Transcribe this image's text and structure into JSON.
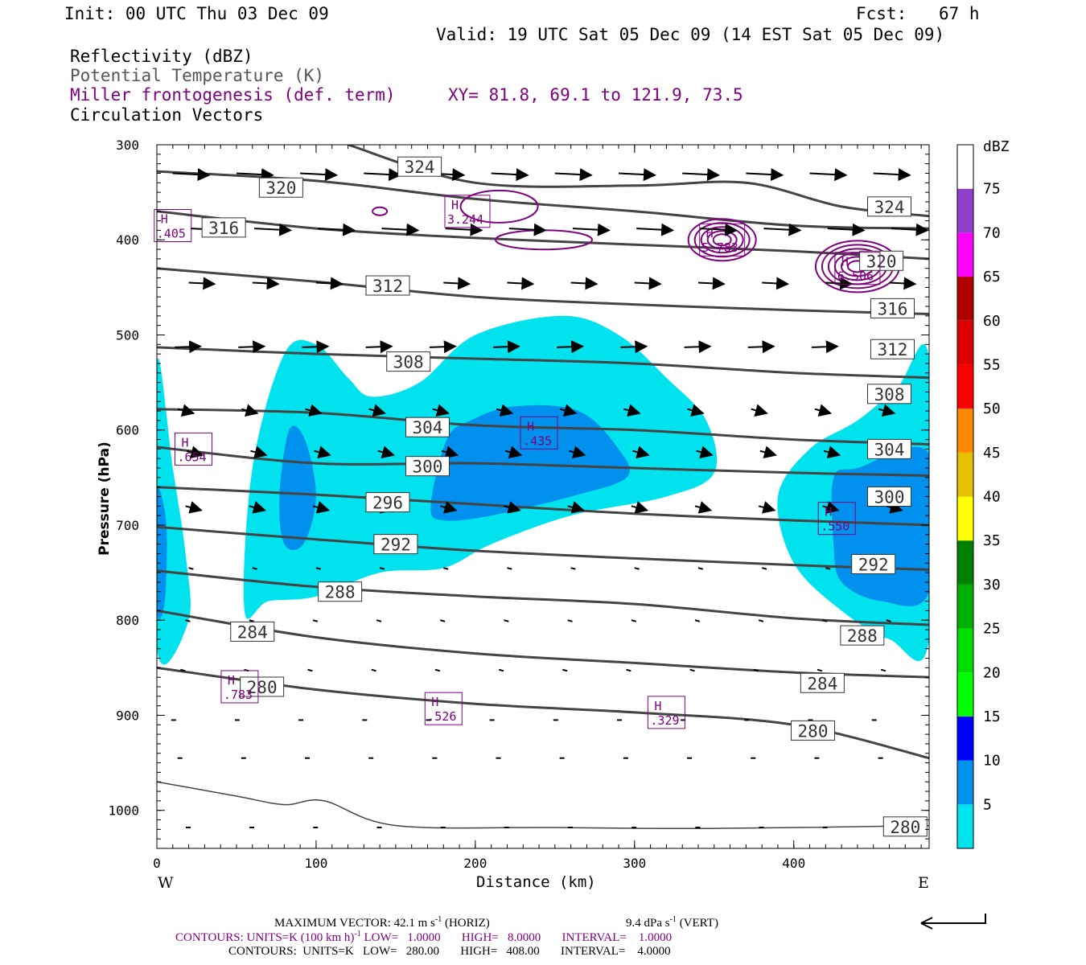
{
  "header": {
    "init": "Init: 00 UTC Thu 03 Dec 09",
    "fcst_label": "Fcst:",
    "fcst_value": "67 h",
    "valid": "Valid: 19 UTC Sat 05 Dec 09 (14 EST Sat 05 Dec 09)"
  },
  "fields": {
    "reflectivity": "Reflectivity (dBZ)",
    "theta": "Potential Temperature (K)",
    "frontogenesis": "Miller frontogenesis (def. term)",
    "xy": "XY=  81.8, 69.1 to 121.9, 73.5",
    "vectors": "Circulation Vectors"
  },
  "colors": {
    "theta_contour": "#444444",
    "frontogenesis": "#800080",
    "dbz_5": "#00e3ee",
    "dbz_10": "#0090ee"
  },
  "chart_data": {
    "type": "contour-cross-section",
    "xlabel": "Distance (km)",
    "ylabel": "Pressure (hPa)",
    "xlim": [
      0,
      485
    ],
    "ylim": [
      1040,
      300
    ],
    "x_ticks": [
      "0",
      "100",
      "200",
      "300",
      "400"
    ],
    "y_ticks": [
      "300",
      "400",
      "500",
      "600",
      "700",
      "800",
      "900",
      "1000"
    ],
    "west_label": "W",
    "east_label": "E",
    "colorbar": {
      "title": "dBZ",
      "levels": [
        "5",
        "10",
        "15",
        "20",
        "25",
        "30",
        "35",
        "40",
        "45",
        "50",
        "55",
        "60",
        "65",
        "70",
        "75"
      ],
      "colors": [
        "#00e3ee",
        "#0090ee",
        "#0000ff",
        "#00ff00",
        "#00dd00",
        "#00b000",
        "#008000",
        "#ffff00",
        "#e8c000",
        "#ff8800",
        "#ff0000",
        "#dd0000",
        "#b00000",
        "#ff00ff",
        "#9040cc",
        "#ffffff"
      ]
    },
    "theta_contours": [
      {
        "level": 280,
        "points": [
          [
            0,
            970
          ],
          [
            50,
            985
          ],
          [
            80,
            994
          ],
          [
            105,
            990
          ],
          [
            150,
            1016
          ],
          [
            250,
            1018
          ],
          [
            350,
            1019
          ],
          [
            485,
            1016
          ]
        ]
      },
      {
        "level": 280,
        "points": [
          [
            0,
            850
          ],
          [
            100,
            873
          ],
          [
            200,
            888
          ],
          [
            300,
            897
          ],
          [
            400,
            910
          ],
          [
            485,
            945
          ]
        ]
      },
      {
        "level": 284,
        "points": [
          [
            0,
            790
          ],
          [
            100,
            818
          ],
          [
            200,
            835
          ],
          [
            300,
            845
          ],
          [
            400,
            855
          ],
          [
            485,
            860
          ]
        ]
      },
      {
        "level": 288,
        "points": [
          [
            0,
            748
          ],
          [
            100,
            765
          ],
          [
            200,
            775
          ],
          [
            300,
            783
          ],
          [
            400,
            798
          ],
          [
            485,
            805
          ]
        ]
      },
      {
        "level": 292,
        "points": [
          [
            0,
            702
          ],
          [
            100,
            715
          ],
          [
            200,
            727
          ],
          [
            300,
            735
          ],
          [
            400,
            742
          ],
          [
            485,
            747
          ]
        ]
      },
      {
        "level": 296,
        "points": [
          [
            0,
            660
          ],
          [
            100,
            668
          ],
          [
            200,
            678
          ],
          [
            300,
            688
          ],
          [
            400,
            695
          ],
          [
            485,
            700
          ]
        ]
      },
      {
        "level": 300,
        "points": [
          [
            0,
            618
          ],
          [
            100,
            635
          ],
          [
            200,
            635
          ],
          [
            300,
            640
          ],
          [
            400,
            645
          ],
          [
            485,
            648
          ]
        ]
      },
      {
        "level": 304,
        "points": [
          [
            0,
            578
          ],
          [
            100,
            582
          ],
          [
            200,
            595
          ],
          [
            300,
            600
          ],
          [
            400,
            610
          ],
          [
            485,
            615
          ]
        ]
      },
      {
        "level": 308,
        "points": [
          [
            0,
            513
          ],
          [
            100,
            520
          ],
          [
            200,
            525
          ],
          [
            300,
            530
          ],
          [
            400,
            540
          ],
          [
            485,
            545
          ]
        ]
      },
      {
        "level": 312,
        "points": [
          [
            0,
            430
          ],
          [
            100,
            444
          ],
          [
            200,
            460
          ],
          [
            300,
            468
          ],
          [
            400,
            474
          ],
          [
            485,
            478
          ]
        ]
      },
      {
        "level": 316,
        "points": [
          [
            0,
            370
          ],
          [
            100,
            388
          ],
          [
            200,
            398
          ],
          [
            300,
            405
          ],
          [
            400,
            412
          ],
          [
            485,
            420
          ]
        ]
      },
      {
        "level": 320,
        "points": [
          [
            0,
            328
          ],
          [
            100,
            338
          ],
          [
            200,
            357
          ],
          [
            300,
            370
          ],
          [
            400,
            385
          ],
          [
            485,
            388
          ]
        ]
      },
      {
        "level": 324,
        "points": [
          [
            120,
            300
          ],
          [
            200,
            340
          ],
          [
            300,
            343
          ],
          [
            370,
            340
          ],
          [
            430,
            365
          ],
          [
            485,
            375
          ]
        ]
      }
    ],
    "theta_labels": [
      {
        "text": "324",
        "x": 165,
        "p": 323
      },
      {
        "text": "320",
        "x": 78,
        "p": 345
      },
      {
        "text": "316",
        "x": 42,
        "p": 387
      },
      {
        "text": "312",
        "x": 145,
        "p": 448
      },
      {
        "text": "308",
        "x": 158,
        "p": 528
      },
      {
        "text": "304",
        "x": 170,
        "p": 597
      },
      {
        "text": "300",
        "x": 170,
        "p": 638
      },
      {
        "text": "296",
        "x": 145,
        "p": 676
      },
      {
        "text": "292",
        "x": 150,
        "p": 720
      },
      {
        "text": "288",
        "x": 115,
        "p": 770
      },
      {
        "text": "284",
        "x": 60,
        "p": 812
      },
      {
        "text": "280",
        "x": 66,
        "p": 870
      },
      {
        "text": "324",
        "x": 460,
        "p": 365
      },
      {
        "text": "320",
        "x": 455,
        "p": 422
      },
      {
        "text": "316",
        "x": 462,
        "p": 472
      },
      {
        "text": "312",
        "x": 462,
        "p": 515
      },
      {
        "text": "308",
        "x": 460,
        "p": 562
      },
      {
        "text": "304",
        "x": 460,
        "p": 620
      },
      {
        "text": "300",
        "x": 460,
        "p": 670
      },
      {
        "text": "292",
        "x": 450,
        "p": 741
      },
      {
        "text": "288",
        "x": 443,
        "p": 816
      },
      {
        "text": "284",
        "x": 418,
        "p": 866
      },
      {
        "text": "280",
        "x": 412,
        "p": 916
      },
      {
        "text": "280",
        "x": 470,
        "p": 1017
      }
    ],
    "reflectivity_5dbz": [
      [
        [
          0,
          530
        ],
        [
          10,
          640
        ],
        [
          18,
          730
        ],
        [
          20,
          800
        ],
        [
          0,
          830
        ]
      ],
      [
        [
          55,
          790
        ],
        [
          60,
          640
        ],
        [
          80,
          520
        ],
        [
          100,
          510
        ],
        [
          120,
          545
        ],
        [
          135,
          565
        ],
        [
          165,
          550
        ],
        [
          200,
          500
        ],
        [
          255,
          480
        ],
        [
          290,
          500
        ],
        [
          320,
          545
        ],
        [
          345,
          590
        ],
        [
          350,
          645
        ],
        [
          320,
          670
        ],
        [
          260,
          690
        ],
        [
          210,
          720
        ],
        [
          180,
          745
        ],
        [
          140,
          750
        ],
        [
          100,
          775
        ],
        [
          70,
          780
        ]
      ],
      [
        [
          390,
          670
        ],
        [
          410,
          620
        ],
        [
          440,
          590
        ],
        [
          465,
          555
        ],
        [
          485,
          525
        ],
        [
          485,
          820
        ],
        [
          460,
          820
        ],
        [
          430,
          790
        ],
        [
          400,
          740
        ]
      ]
    ],
    "reflectivity_10dbz": [
      [
        [
          0,
          665
        ],
        [
          6,
          700
        ],
        [
          5,
          780
        ],
        [
          0,
          790
        ]
      ],
      [
        [
          77,
          670
        ],
        [
          83,
          600
        ],
        [
          93,
          610
        ],
        [
          100,
          670
        ],
        [
          92,
          720
        ],
        [
          80,
          720
        ]
      ],
      [
        [
          172,
          680
        ],
        [
          182,
          610
        ],
        [
          197,
          590
        ],
        [
          225,
          575
        ],
        [
          265,
          580
        ],
        [
          290,
          620
        ],
        [
          295,
          650
        ],
        [
          260,
          670
        ],
        [
          210,
          690
        ],
        [
          180,
          695
        ]
      ],
      [
        [
          425,
          650
        ],
        [
          440,
          640
        ],
        [
          485,
          625
        ],
        [
          485,
          770
        ],
        [
          455,
          780
        ],
        [
          430,
          760
        ],
        [
          425,
          720
        ]
      ]
    ],
    "frontogenesis_maxima": [
      {
        "label": "H",
        "value": "3.244",
        "x": 195,
        "p": 370
      },
      {
        "label": "H",
        "value": "5.783",
        "x": 355,
        "p": 400
      },
      {
        "label": "H",
        "value": ".405",
        "x": 10,
        "p": 385
      },
      {
        "label": "H",
        "value": "6.506",
        "x": 440,
        "p": 430
      },
      {
        "label": "H",
        "value": ".654",
        "x": 23,
        "p": 620
      },
      {
        "label": "H",
        "value": ".435",
        "x": 240,
        "p": 603
      },
      {
        "label": "H",
        "value": ".550",
        "x": 427,
        "p": 693
      },
      {
        "label": "H",
        "value": ".783",
        "x": 52,
        "p": 870
      },
      {
        "label": "H",
        "value": ".526",
        "x": 180,
        "p": 893
      },
      {
        "label": "H",
        "value": ".329",
        "x": 320,
        "p": 897
      }
    ]
  },
  "footer": {
    "max_vector": "MAXIMUM VECTOR:  42.1 m s",
    "max_vector_sup": "-1",
    "horiz": "(HORIZ)",
    "vert": "9.4 dPa s",
    "vert_sup": "-1",
    "vert_suffix": "(VERT)",
    "contours1": "CONTOURS:  UNITS=K (100 km h)",
    "contours1_sup": "-1",
    "contours1_rest": "LOW=   1.0000       HIGH=   8.0000       INTERVAL=    1.0000",
    "contours2": "CONTOURS:  UNITS=K   LOW=   280.00       HIGH=   408.00       INTERVAL=    4.0000"
  }
}
